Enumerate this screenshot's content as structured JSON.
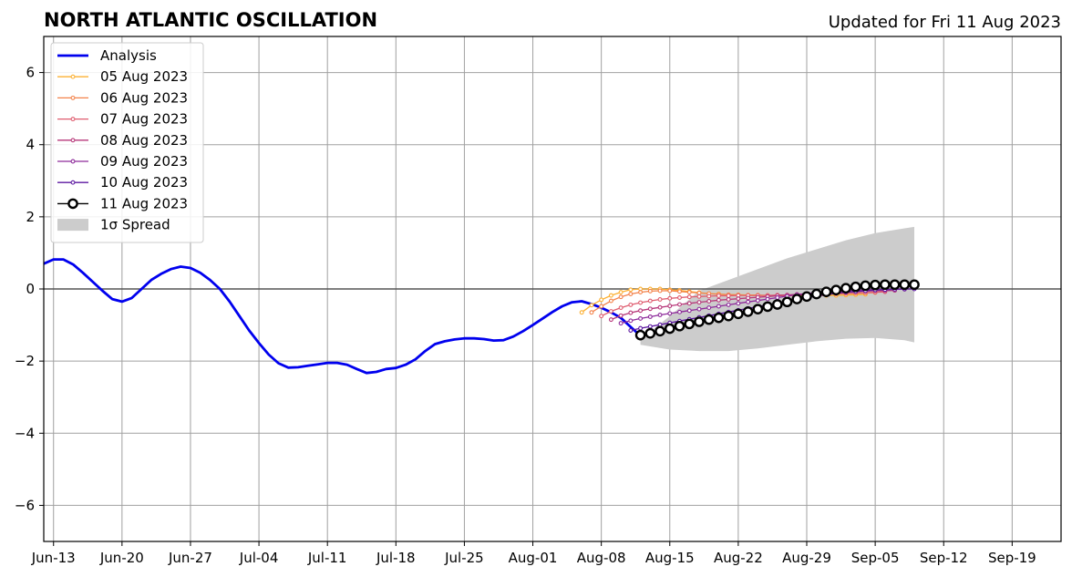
{
  "chart_data": {
    "type": "line",
    "title": "NORTH ATLANTIC OSCILLATION",
    "subtitle": "Updated for Fri 11 Aug 2023",
    "xlabel": "",
    "ylabel": "",
    "xlim": [
      "2023-06-12",
      "2023-09-24"
    ],
    "ylim": [
      -7,
      7
    ],
    "grid": true,
    "legend_position": "top-left",
    "x_ticks": [
      {
        "date": "2023-06-13",
        "label": "Jun-13"
      },
      {
        "date": "2023-06-20",
        "label": "Jun-20"
      },
      {
        "date": "2023-06-27",
        "label": "Jun-27"
      },
      {
        "date": "2023-07-04",
        "label": "Jul-04"
      },
      {
        "date": "2023-07-11",
        "label": "Jul-11"
      },
      {
        "date": "2023-07-18",
        "label": "Jul-18"
      },
      {
        "date": "2023-07-25",
        "label": "Jul-25"
      },
      {
        "date": "2023-08-01",
        "label": "Aug-01"
      },
      {
        "date": "2023-08-08",
        "label": "Aug-08"
      },
      {
        "date": "2023-08-15",
        "label": "Aug-15"
      },
      {
        "date": "2023-08-22",
        "label": "Aug-22"
      },
      {
        "date": "2023-08-29",
        "label": "Aug-29"
      },
      {
        "date": "2023-09-05",
        "label": "Sep-05"
      },
      {
        "date": "2023-09-12",
        "label": "Sep-12"
      },
      {
        "date": "2023-09-19",
        "label": "Sep-19"
      }
    ],
    "y_ticks": [
      {
        "value": -6,
        "label": "−6"
      },
      {
        "value": -4,
        "label": "−4"
      },
      {
        "value": -2,
        "label": "−2"
      },
      {
        "value": 0,
        "label": "0"
      },
      {
        "value": 2,
        "label": "2"
      },
      {
        "value": 4,
        "label": "4"
      },
      {
        "value": 6,
        "label": "6"
      }
    ],
    "analysis": {
      "name": "Analysis",
      "color": "#0000ee",
      "start": "2023-06-12",
      "values": [
        0.7,
        0.82,
        0.82,
        0.68,
        0.45,
        0.2,
        -0.05,
        -0.28,
        -0.35,
        -0.25,
        0.0,
        0.25,
        0.42,
        0.55,
        0.62,
        0.58,
        0.45,
        0.25,
        0.0,
        -0.35,
        -0.75,
        -1.15,
        -1.5,
        -1.82,
        -2.06,
        -2.18,
        -2.17,
        -2.13,
        -2.09,
        -2.05,
        -2.05,
        -2.1,
        -2.22,
        -2.33,
        -2.3,
        -2.22,
        -2.19,
        -2.1,
        -1.95,
        -1.72,
        -1.53,
        -1.45,
        -1.4,
        -1.37,
        -1.37,
        -1.39,
        -1.43,
        -1.42,
        -1.32,
        -1.17,
        -1.0,
        -0.82,
        -0.64,
        -0.48,
        -0.37,
        -0.34,
        -0.42,
        -0.52,
        -0.65,
        -0.8,
        -1.05,
        -1.3
      ]
    },
    "forecasts": [
      {
        "name": "05 Aug 2023",
        "color": "#fcb032",
        "start": "2023-08-06",
        "values": [
          -0.65,
          -0.45,
          -0.3,
          -0.18,
          -0.09,
          -0.02,
          0.0,
          0.0,
          0.0,
          -0.02,
          -0.04,
          -0.07,
          -0.1,
          -0.13,
          -0.14,
          -0.16,
          -0.16,
          -0.17,
          -0.17,
          -0.18,
          -0.18,
          -0.19,
          -0.19,
          -0.19,
          -0.19,
          -0.18,
          -0.18,
          -0.17,
          -0.16,
          -0.15
        ]
      },
      {
        "name": "06 Aug 2023",
        "color": "#f3824a",
        "start": "2023-08-07",
        "values": [
          -0.65,
          -0.48,
          -0.33,
          -0.22,
          -0.14,
          -0.09,
          -0.06,
          -0.05,
          -0.05,
          -0.07,
          -0.09,
          -0.11,
          -0.13,
          -0.15,
          -0.16,
          -0.17,
          -0.18,
          -0.18,
          -0.18,
          -0.18,
          -0.18,
          -0.17,
          -0.17,
          -0.16,
          -0.15,
          -0.14,
          -0.13,
          -0.12,
          -0.11,
          -0.1
        ]
      },
      {
        "name": "07 Aug 2023",
        "color": "#df5c6f",
        "start": "2023-08-08",
        "values": [
          -0.75,
          -0.62,
          -0.52,
          -0.44,
          -0.38,
          -0.33,
          -0.29,
          -0.26,
          -0.24,
          -0.22,
          -0.21,
          -0.2,
          -0.19,
          -0.19,
          -0.18,
          -0.18,
          -0.18,
          -0.18,
          -0.17,
          -0.17,
          -0.16,
          -0.16,
          -0.15,
          -0.14,
          -0.13,
          -0.12,
          -0.11,
          -0.1,
          -0.09,
          -0.08
        ]
      },
      {
        "name": "08 Aug 2023",
        "color": "#b73779",
        "start": "2023-08-09",
        "values": [
          -0.85,
          -0.74,
          -0.66,
          -0.6,
          -0.55,
          -0.51,
          -0.47,
          -0.43,
          -0.4,
          -0.37,
          -0.34,
          -0.31,
          -0.29,
          -0.27,
          -0.25,
          -0.23,
          -0.21,
          -0.19,
          -0.17,
          -0.15,
          -0.13,
          -0.11,
          -0.1,
          -0.09,
          -0.08,
          -0.07,
          -0.06,
          -0.05,
          -0.05,
          -0.04
        ]
      },
      {
        "name": "09 Aug 2023",
        "color": "#8d2a9a",
        "start": "2023-08-10",
        "values": [
          -0.95,
          -0.88,
          -0.82,
          -0.77,
          -0.72,
          -0.68,
          -0.64,
          -0.6,
          -0.56,
          -0.52,
          -0.48,
          -0.44,
          -0.4,
          -0.36,
          -0.32,
          -0.28,
          -0.24,
          -0.2,
          -0.16,
          -0.13,
          -0.1,
          -0.08,
          -0.06,
          -0.05,
          -0.04,
          -0.03,
          -0.02,
          -0.02,
          -0.01,
          -0.01
        ]
      },
      {
        "name": "10 Aug 2023",
        "color": "#5c18a0",
        "start": "2023-08-11",
        "values": [
          -1.15,
          -1.09,
          -1.04,
          -0.99,
          -0.94,
          -0.89,
          -0.84,
          -0.79,
          -0.74,
          -0.69,
          -0.64,
          -0.59,
          -0.54,
          -0.49,
          -0.44,
          -0.39,
          -0.34,
          -0.29,
          -0.24,
          -0.2,
          -0.16,
          -0.12,
          -0.09,
          -0.07,
          -0.05,
          -0.03,
          -0.02,
          -0.01,
          0.0,
          0.0
        ]
      },
      {
        "name": "11 Aug 2023",
        "color": "#000000",
        "start": "2023-08-12",
        "values": [
          -1.28,
          -1.23,
          -1.17,
          -1.1,
          -1.03,
          -0.97,
          -0.91,
          -0.85,
          -0.8,
          -0.75,
          -0.69,
          -0.63,
          -0.56,
          -0.49,
          -0.43,
          -0.36,
          -0.28,
          -0.21,
          -0.14,
          -0.08,
          -0.03,
          0.02,
          0.06,
          0.09,
          0.11,
          0.12,
          0.12,
          0.12,
          0.12
        ]
      }
    ],
    "spread": {
      "name": "1σ Spread",
      "color": "#cccccc",
      "x": [
        "2023-08-12",
        "2023-08-15",
        "2023-08-18",
        "2023-08-21",
        "2023-08-24",
        "2023-08-27",
        "2023-08-30",
        "2023-09-02",
        "2023-09-05",
        "2023-09-08",
        "2023-09-09"
      ],
      "upper": [
        -1.4,
        -0.75,
        -0.05,
        0.25,
        0.55,
        0.85,
        1.1,
        1.35,
        1.55,
        1.68,
        1.72
      ],
      "lower": [
        -1.55,
        -1.68,
        -1.72,
        -1.72,
        -1.65,
        -1.55,
        -1.45,
        -1.38,
        -1.36,
        -1.42,
        -1.48
      ]
    },
    "legend": [
      {
        "label": "Analysis",
        "style": "analysis"
      },
      {
        "label": "05 Aug 2023",
        "style": "forecast",
        "color": "#fcb032"
      },
      {
        "label": "06 Aug 2023",
        "style": "forecast",
        "color": "#f3824a"
      },
      {
        "label": "07 Aug 2023",
        "style": "forecast",
        "color": "#df5c6f"
      },
      {
        "label": "08 Aug 2023",
        "style": "forecast",
        "color": "#b73779"
      },
      {
        "label": "09 Aug 2023",
        "style": "forecast",
        "color": "#8d2a9a"
      },
      {
        "label": "10 Aug 2023",
        "style": "forecast",
        "color": "#5c18a0"
      },
      {
        "label": "11 Aug 2023",
        "style": "latest",
        "color": "#000000"
      },
      {
        "label": "1σ Spread",
        "style": "spread",
        "color": "#cccccc"
      }
    ]
  }
}
